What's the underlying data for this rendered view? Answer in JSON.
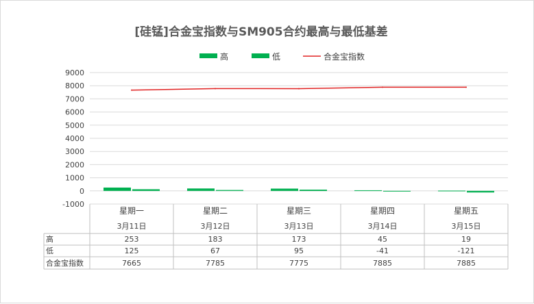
{
  "chart_data": {
    "type": "bar",
    "title": "[硅锰]合金宝指数与SM905合约最高与最低基差",
    "categories": [
      "星期一",
      "星期二",
      "星期三",
      "星期四",
      "星期五"
    ],
    "dates": [
      "3月11日",
      "3月12日",
      "3月13日",
      "3月14日",
      "3月15日"
    ],
    "series": [
      {
        "name": "高",
        "kind": "bar",
        "values": [
          253,
          183,
          173,
          45,
          19
        ],
        "color": "#00b050"
      },
      {
        "name": "低",
        "kind": "bar",
        "values": [
          125,
          67,
          95,
          -41,
          -121
        ],
        "color": "#00b050"
      },
      {
        "name": "合金宝指数",
        "kind": "line",
        "values": [
          7665,
          7785,
          7775,
          7885,
          7885
        ],
        "color": "#e02020"
      }
    ],
    "ylim": [
      -1000,
      9000
    ],
    "yticks": [
      -1000,
      0,
      1000,
      2000,
      3000,
      4000,
      5000,
      6000,
      7000,
      8000,
      9000
    ],
    "grid": true,
    "legend": "top",
    "data_table": true
  }
}
